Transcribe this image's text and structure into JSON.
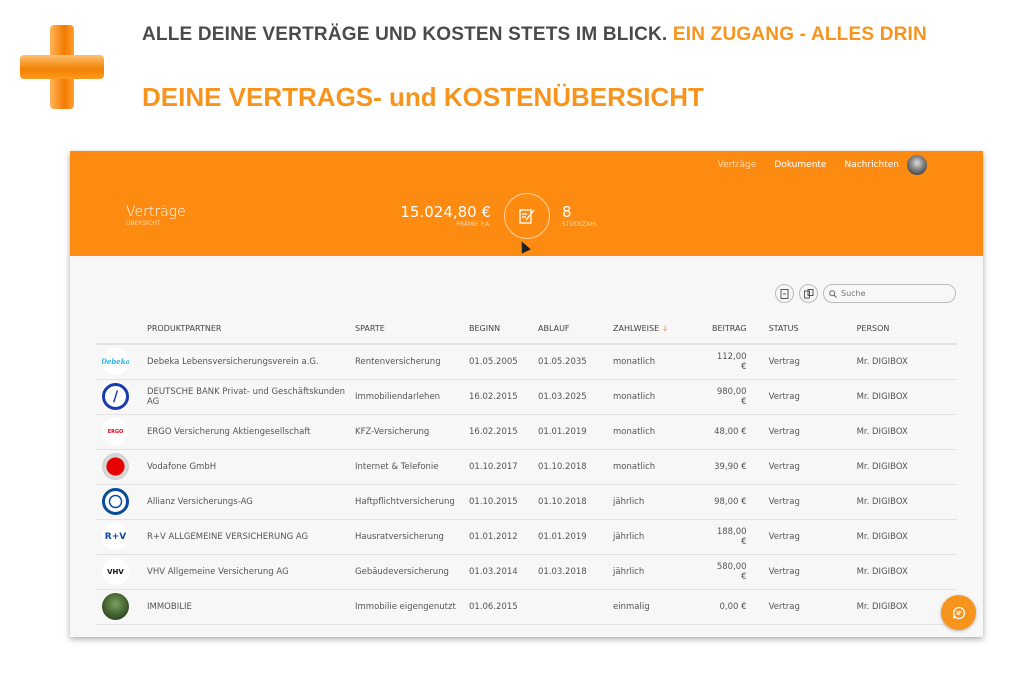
{
  "banner": {
    "tagline": "ALLE DEINE VERTRÄGE UND KOSTEN STETS IM BLICK.",
    "tagline_accent": "EIN ZUGANG - ALLES DRIN",
    "title": "DEINE VERTRAGS- und KOSTENÜBERSICHT"
  },
  "nav": {
    "items": [
      "Verträge",
      "Dokumente",
      "Nachrichten"
    ]
  },
  "header": {
    "section_title": "Verträge",
    "section_sub": "ÜBERSICHT",
    "premium": "15.024,80 €",
    "premium_label": "PRÄMIE P.A.",
    "count": "8",
    "count_label": "STÜCKZAHL"
  },
  "search": {
    "placeholder": "Suche"
  },
  "columns": [
    "PRODUKTPARTNER",
    "SPARTE",
    "BEGINN",
    "ABLAUF",
    "ZAHLWEISE",
    "BEITRAG",
    "STATUS",
    "PERSON"
  ],
  "sort_indicator": "↓",
  "rows": [
    {
      "logo": "Debeka",
      "partner": "Debeka Lebensversicherungsverein a.G.",
      "sparte": "Rentenversicherung",
      "beginn": "01.05.2005",
      "ablauf": "01.05.2035",
      "zahlweise": "monatlich",
      "beitrag": "112,00 €",
      "status": "Vertrag",
      "person": "Mr. DIGIBOX"
    },
    {
      "logo": "/",
      "partner": "DEUTSCHE BANK Privat- und Geschäftskunden AG",
      "sparte": "Immobiliendarlehen",
      "beginn": "16.02.2015",
      "ablauf": "01.03.2025",
      "zahlweise": "monatlich",
      "beitrag": "980,00 €",
      "status": "Vertrag",
      "person": "Mr. DIGIBOX"
    },
    {
      "logo": "ERGO",
      "partner": "ERGO Versicherung Aktiengesellschaft",
      "sparte": "KFZ-Versicherung",
      "beginn": "16.02.2015",
      "ablauf": "01.01.2019",
      "zahlweise": "monatlich",
      "beitrag": "48,00 €",
      "status": "Vertrag",
      "person": "Mr. DIGIBOX"
    },
    {
      "logo": "",
      "partner": "Vodafone GmbH",
      "sparte": "Internet & Telefonie",
      "beginn": "01.10.2017",
      "ablauf": "01.10.2018",
      "zahlweise": "monatlich",
      "beitrag": "39,90 €",
      "status": "Vertrag",
      "person": "Mr. DIGIBOX"
    },
    {
      "logo": "",
      "partner": "Allianz Versicherungs-AG",
      "sparte": "Haftpflichtversicherung",
      "beginn": "01.10.2015",
      "ablauf": "01.10.2018",
      "zahlweise": "jährlich",
      "beitrag": "98,00 €",
      "status": "Vertrag",
      "person": "Mr. DIGIBOX"
    },
    {
      "logo": "R+V",
      "partner": "R+V ALLGEMEINE VERSICHERUNG AG",
      "sparte": "Hausratversicherung",
      "beginn": "01.01.2012",
      "ablauf": "01.01.2019",
      "zahlweise": "jährlich",
      "beitrag": "188,00 €",
      "status": "Vertrag",
      "person": "Mr. DIGIBOX"
    },
    {
      "logo": "VHV",
      "partner": "VHV Allgemeine Versicherung AG",
      "sparte": "Gebäudeversicherung",
      "beginn": "01.03.2014",
      "ablauf": "01.03.2018",
      "zahlweise": "jährlich",
      "beitrag": "580,00 €",
      "status": "Vertrag",
      "person": "Mr. DIGIBOX"
    },
    {
      "logo": "",
      "partner": "IMMOBILIE",
      "sparte": "Immobilie eigengenutzt",
      "beginn": "01.06.2015",
      "ablauf": "",
      "zahlweise": "einmalig",
      "beitrag": "0,00 €",
      "status": "Vertrag",
      "person": "Mr. DIGIBOX"
    }
  ],
  "colors": {
    "accent": "#fd8b12",
    "tagline_text": "#4a4a4a"
  }
}
